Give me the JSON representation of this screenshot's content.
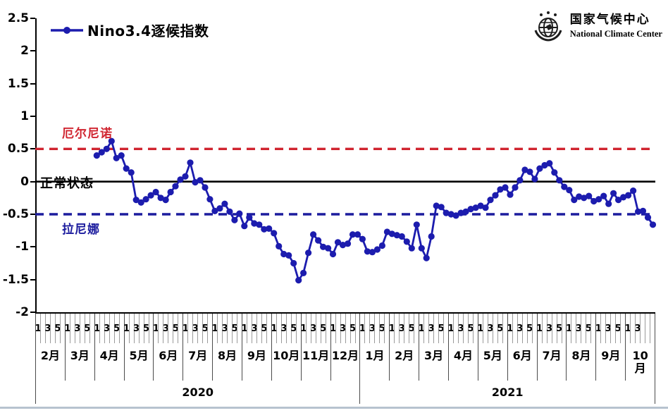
{
  "legend": {
    "label": "Nino3.4逐候指数"
  },
  "logo": {
    "cn": "国家气候中心",
    "en": "National Climate Center"
  },
  "annotations": {
    "el_nino": "厄尔尼诺",
    "normal": "正常状态",
    "la_nina": "拉尼娜"
  },
  "colors": {
    "series": "#1c1cae",
    "el_nino_line": "#d02530",
    "normal_line": "#000000",
    "la_nina_line": "#1c1c9e",
    "pentad_grid": "#9a9a9a",
    "month_grid": "#4a4a4a",
    "bottom_rule": "#b7c3cf"
  },
  "chart_data": {
    "type": "line",
    "title": "Nino3.4逐候指数",
    "ylim": [
      -2,
      2.5
    ],
    "yticks": [
      "2.5",
      "2",
      "1.5",
      "1",
      "0.5",
      "0",
      "-0.5",
      "-1",
      "-1.5",
      "-2"
    ],
    "grid": "off",
    "legend_position": "top-left",
    "reference_lines": [
      {
        "value": 0.5,
        "style": "dashed",
        "color": "#d02530",
        "label": "厄尔尼诺"
      },
      {
        "value": 0,
        "style": "solid",
        "color": "#000000",
        "label": "正常状态"
      },
      {
        "value": -0.5,
        "style": "dashed",
        "color": "#1c1c9e",
        "label": "拉尼娜"
      }
    ],
    "x_axis": {
      "unit": "pentad (候) within month",
      "pentads_per_month": 6,
      "pentad_labels": [
        "1",
        "3",
        "5"
      ],
      "pentad_labels_last_month": [
        "1",
        "3"
      ],
      "years": [
        {
          "label": "2020",
          "months": [
            "2月",
            "3月",
            "4月",
            "5月",
            "6月",
            "7月",
            "8月",
            "9月",
            "10月",
            "11月",
            "12月"
          ]
        },
        {
          "label": "2021",
          "months": [
            "1月",
            "2月",
            "3月",
            "4月",
            "5月",
            "6月",
            "7月",
            "8月",
            "9月",
            "10月"
          ]
        }
      ]
    },
    "series": [
      {
        "name": "Nino3.4逐候指数",
        "start_month_index": 2,
        "start_month_label": "2020年4月",
        "values_per_month": 6,
        "values": [
          0.4,
          0.45,
          0.5,
          0.62,
          0.36,
          0.4,
          0.2,
          0.14,
          -0.28,
          -0.32,
          -0.27,
          -0.21,
          -0.16,
          -0.25,
          -0.28,
          -0.16,
          -0.07,
          0.03,
          0.08,
          0.29,
          -0.01,
          0.02,
          -0.09,
          -0.27,
          -0.45,
          -0.41,
          -0.34,
          -0.46,
          -0.59,
          -0.49,
          -0.68,
          -0.55,
          -0.64,
          -0.66,
          -0.73,
          -0.72,
          -0.79,
          -0.99,
          -1.11,
          -1.13,
          -1.25,
          -1.51,
          -1.4,
          -1.09,
          -0.81,
          -0.9,
          -1.0,
          -1.02,
          -1.11,
          -0.93,
          -0.97,
          -0.95,
          -0.81,
          -0.81,
          -0.88,
          -1.07,
          -1.08,
          -1.04,
          -0.98,
          -0.77,
          -0.8,
          -0.82,
          -0.84,
          -0.92,
          -1.02,
          -0.66,
          -1.02,
          -1.17,
          -0.84,
          -0.37,
          -0.39,
          -0.48,
          -0.5,
          -0.52,
          -0.48,
          -0.46,
          -0.42,
          -0.4,
          -0.37,
          -0.4,
          -0.28,
          -0.21,
          -0.12,
          -0.09,
          -0.2,
          -0.09,
          0.02,
          0.18,
          0.15,
          0.04,
          0.2,
          0.25,
          0.28,
          0.14,
          0.02,
          -0.08,
          -0.13,
          -0.28,
          -0.23,
          -0.25,
          -0.22,
          -0.3,
          -0.27,
          -0.22,
          -0.34,
          -0.18,
          -0.28,
          -0.24,
          -0.21,
          -0.14,
          -0.46,
          -0.45,
          -0.55,
          -0.66
        ]
      }
    ]
  }
}
